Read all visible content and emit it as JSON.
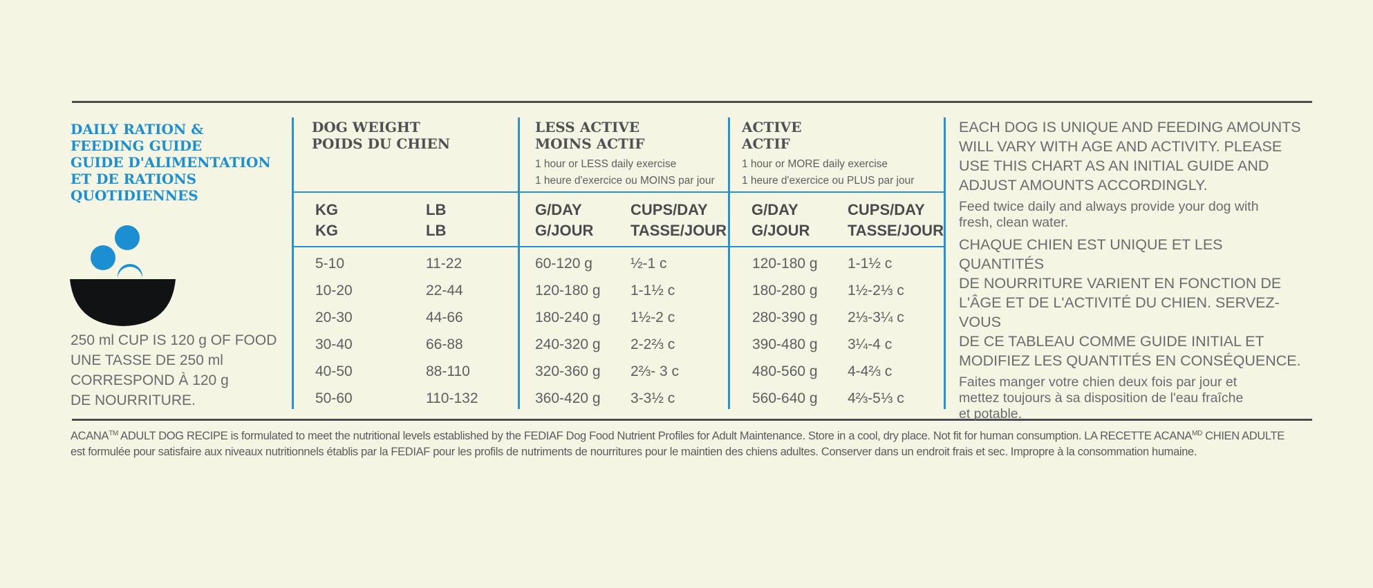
{
  "guide": {
    "title_lines": [
      "DAILY RATION &",
      "FEEDING GUIDE",
      "GUIDE D'ALIMENTATION",
      "ET DE RATIONS",
      "QUOTIDIENNES"
    ],
    "cup_note_lines": [
      "250 ml CUP IS 120 g OF FOOD",
      "UNE TASSE DE 250 ml",
      "CORRESPOND À 120 g",
      "DE NOURRITURE."
    ],
    "icon": "bowl-with-kibble-icon",
    "accent_color": "#1b8fd2"
  },
  "table": {
    "weight": {
      "title_lines": [
        "DOG WEIGHT",
        "POIDS DU CHIEN"
      ],
      "col_kg": "KG\nKG",
      "col_lb": "LB\nLB",
      "kg": [
        "5-10",
        "10-20",
        "20-30",
        "30-40",
        "40-50",
        "50-60"
      ],
      "lb": [
        "11-22",
        "22-44",
        "44-66",
        "66-88",
        "88-110",
        "110-132"
      ]
    },
    "less_active": {
      "title_lines": [
        "LESS ACTIVE",
        "MOINS ACTIF"
      ],
      "sub_lines": [
        "1 hour or LESS daily exercise",
        "1 heure d'exercice ou MOINS par jour"
      ],
      "col_g": "G/DAY\nG/JOUR",
      "col_cups": "CUPS/DAY\nTASSE/JOUR",
      "g": [
        "60-120 g",
        "120-180 g",
        "180-240 g",
        "240-320 g",
        "320-360 g",
        "360-420 g"
      ],
      "cups": [
        "½-1 c",
        "1-1½ c",
        "1½-2 c",
        "2-2⅔ c",
        "2⅔- 3 c",
        "3-3½ c"
      ]
    },
    "active": {
      "title_lines": [
        "ACTIVE",
        "ACTIF"
      ],
      "sub_lines": [
        "1 hour or MORE daily exercise",
        "1 heure d'exercice ou PLUS par jour"
      ],
      "col_g": "G/DAY\nG/JOUR",
      "col_cups": "CUPS/DAY\nTASSE/JOUR",
      "g": [
        "120-180 g",
        "180-280 g",
        "280-390 g",
        "390-480 g",
        "480-560 g",
        "560-640 g"
      ],
      "cups": [
        "1-1½ c",
        "1½-2⅓ c",
        "2⅓-3¼ c",
        "3¼-4 c",
        "4-4⅔ c",
        "4⅔-5⅓ c"
      ]
    }
  },
  "right": {
    "en_caps_lines": [
      "EACH DOG IS UNIQUE AND FEEDING AMOUNTS",
      "WILL VARY WITH AGE AND ACTIVITY. PLEASE",
      "USE THIS CHART AS AN INITIAL GUIDE AND",
      "ADJUST AMOUNTS ACCORDINGLY."
    ],
    "en_note_lines": [
      "Feed twice daily and always provide your dog with",
      "fresh, clean water."
    ],
    "fr_caps_lines": [
      "CHAQUE CHIEN EST UNIQUE ET LES QUANTITÉS",
      "DE NOURRITURE VARIENT EN FONCTION DE",
      "L'ÂGE ET DE L'ACTIVITÉ DU CHIEN. SERVEZ-VOUS",
      "DE CE TABLEAU COMME GUIDE INITIAL ET",
      "MODIFIEZ LES QUANTITÉS EN CONSÉQUENCE."
    ],
    "fr_note_lines": [
      "Faites manger votre chien deux fois par jour et",
      "mettez toujours à sa disposition de l'eau fraîche",
      "et potable."
    ]
  },
  "footnote": {
    "brand": "ACANA",
    "tm": "TM",
    "line1_rest": " ADULT DOG RECIPE is formulated to meet the nutritional levels established by the FEDIAF Dog Food Nutrient Profiles for Adult Maintenance. Store in a cool, dry place. Not fit for human consumption. LA RECETTE ACANA",
    "md": "MD",
    "line1_end": " CHIEN ADULTE",
    "line2": "est formulée pour satisfaire aux niveaux nutritionnels établis par la FEDIAF pour les profils de nutriments de nourritures pour le maintien des chiens adultes. Conserver dans un endroit frais et sec. Impropre à la consommation humaine."
  }
}
